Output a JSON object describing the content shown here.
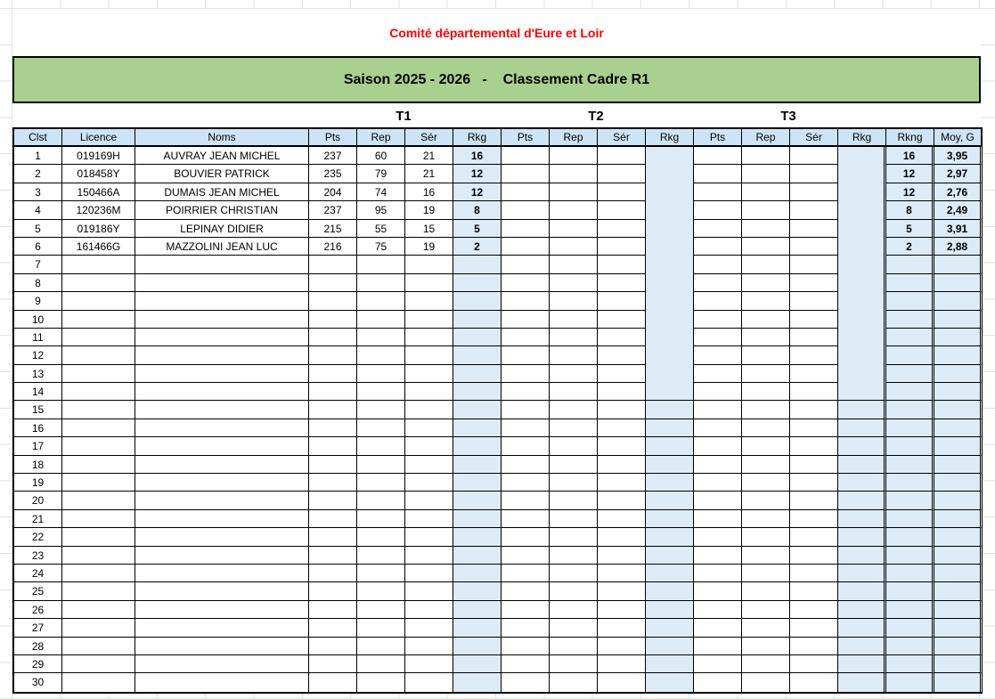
{
  "title": "Comité départemental d'Eure et Loir",
  "banner": "Saison 2025 - 2026   -    Classement Cadre R1",
  "colors": {
    "title_text": "#ff0000",
    "banner_fill": "#a9d08e",
    "header_fill": "#cce4f6",
    "cell_fill": "#ddebf7",
    "gridline": "#e2e2e2",
    "border": "#000000"
  },
  "table": {
    "group_labels": [
      "T1",
      "T2",
      "T3"
    ],
    "columns": [
      "Clst",
      "Licence",
      "Noms",
      "Pts",
      "Rep",
      "Sér",
      "Rkg",
      "Pts",
      "Rep",
      "Sér",
      "Rkg",
      "Pts",
      "Rep",
      "Sér",
      "Rkg",
      "Rkng",
      "Moy, G"
    ],
    "rows": [
      [
        "1",
        "019169H",
        "AUVRAY JEAN MICHEL",
        "237",
        "60",
        "21",
        "16",
        "",
        "",
        "",
        "",
        "",
        "",
        "",
        "",
        "16",
        "3,95"
      ],
      [
        "2",
        "018458Y",
        "BOUVIER PATRICK",
        "235",
        "79",
        "21",
        "12",
        "",
        "",
        "",
        "",
        "",
        "",
        "",
        "",
        "12",
        "2,97"
      ],
      [
        "3",
        "150466A",
        "DUMAIS JEAN MICHEL",
        "204",
        "74",
        "16",
        "12",
        "",
        "",
        "",
        "",
        "",
        "",
        "",
        "",
        "12",
        "2,76"
      ],
      [
        "4",
        "120236M",
        "POIRRIER CHRISTIAN",
        "237",
        "95",
        "19",
        "8",
        "",
        "",
        "",
        "",
        "",
        "",
        "",
        "",
        "8",
        "2,49"
      ],
      [
        "5",
        "019186Y",
        "LEPINAY DIDIER",
        "215",
        "55",
        "15",
        "5",
        "",
        "",
        "",
        "",
        "",
        "",
        "",
        "",
        "5",
        "3,91"
      ],
      [
        "6",
        "161466G",
        "MAZZOLINI JEAN LUC",
        "216",
        "75",
        "19",
        "2",
        "",
        "",
        "",
        "",
        "",
        "",
        "",
        "",
        "2",
        "2,88"
      ],
      [
        "7",
        "",
        "",
        "",
        "",
        "",
        "",
        "",
        "",
        "",
        "",
        "",
        "",
        "",
        "",
        "",
        ""
      ],
      [
        "8",
        "",
        "",
        "",
        "",
        "",
        "",
        "",
        "",
        "",
        "",
        "",
        "",
        "",
        "",
        "",
        ""
      ],
      [
        "9",
        "",
        "",
        "",
        "",
        "",
        "",
        "",
        "",
        "",
        "",
        "",
        "",
        "",
        "",
        "",
        ""
      ],
      [
        "10",
        "",
        "",
        "",
        "",
        "",
        "",
        "",
        "",
        "",
        "",
        "",
        "",
        "",
        "",
        "",
        ""
      ],
      [
        "11",
        "",
        "",
        "",
        "",
        "",
        "",
        "",
        "",
        "",
        "",
        "",
        "",
        "",
        "",
        "",
        ""
      ],
      [
        "12",
        "",
        "",
        "",
        "",
        "",
        "",
        "",
        "",
        "",
        "",
        "",
        "",
        "",
        "",
        "",
        ""
      ],
      [
        "13",
        "",
        "",
        "",
        "",
        "",
        "",
        "",
        "",
        "",
        "",
        "",
        "",
        "",
        "",
        "",
        ""
      ],
      [
        "14",
        "",
        "",
        "",
        "",
        "",
        "",
        "",
        "",
        "",
        "",
        "",
        "",
        "",
        "",
        "",
        ""
      ],
      [
        "15",
        "",
        "",
        "",
        "",
        "",
        "",
        "",
        "",
        "",
        "",
        "",
        "",
        "",
        "",
        "",
        ""
      ],
      [
        "16",
        "",
        "",
        "",
        "",
        "",
        "",
        "",
        "",
        "",
        "",
        "",
        "",
        "",
        "",
        "",
        ""
      ],
      [
        "17",
        "",
        "",
        "",
        "",
        "",
        "",
        "",
        "",
        "",
        "",
        "",
        "",
        "",
        "",
        "",
        ""
      ],
      [
        "18",
        "",
        "",
        "",
        "",
        "",
        "",
        "",
        "",
        "",
        "",
        "",
        "",
        "",
        "",
        "",
        ""
      ],
      [
        "19",
        "",
        "",
        "",
        "",
        "",
        "",
        "",
        "",
        "",
        "",
        "",
        "",
        "",
        "",
        "",
        ""
      ],
      [
        "20",
        "",
        "",
        "",
        "",
        "",
        "",
        "",
        "",
        "",
        "",
        "",
        "",
        "",
        "",
        "",
        ""
      ],
      [
        "21",
        "",
        "",
        "",
        "",
        "",
        "",
        "",
        "",
        "",
        "",
        "",
        "",
        "",
        "",
        "",
        ""
      ],
      [
        "22",
        "",
        "",
        "",
        "",
        "",
        "",
        "",
        "",
        "",
        "",
        "",
        "",
        "",
        "",
        "",
        ""
      ],
      [
        "23",
        "",
        "",
        "",
        "",
        "",
        "",
        "",
        "",
        "",
        "",
        "",
        "",
        "",
        "",
        "",
        ""
      ],
      [
        "24",
        "",
        "",
        "",
        "",
        "",
        "",
        "",
        "",
        "",
        "",
        "",
        "",
        "",
        "",
        "",
        ""
      ],
      [
        "25",
        "",
        "",
        "",
        "",
        "",
        "",
        "",
        "",
        "",
        "",
        "",
        "",
        "",
        "",
        "",
        ""
      ],
      [
        "26",
        "",
        "",
        "",
        "",
        "",
        "",
        "",
        "",
        "",
        "",
        "",
        "",
        "",
        "",
        "",
        ""
      ],
      [
        "27",
        "",
        "",
        "",
        "",
        "",
        "",
        "",
        "",
        "",
        "",
        "",
        "",
        "",
        "",
        "",
        ""
      ],
      [
        "28",
        "",
        "",
        "",
        "",
        "",
        "",
        "",
        "",
        "",
        "",
        "",
        "",
        "",
        "",
        "",
        ""
      ],
      [
        "29",
        "",
        "",
        "",
        "",
        "",
        "",
        "",
        "",
        "",
        "",
        "",
        "",
        "",
        "",
        "",
        ""
      ],
      [
        "30",
        "",
        "",
        "",
        "",
        "",
        "",
        "",
        "",
        "",
        "",
        "",
        "",
        "",
        "",
        "",
        ""
      ]
    ]
  }
}
